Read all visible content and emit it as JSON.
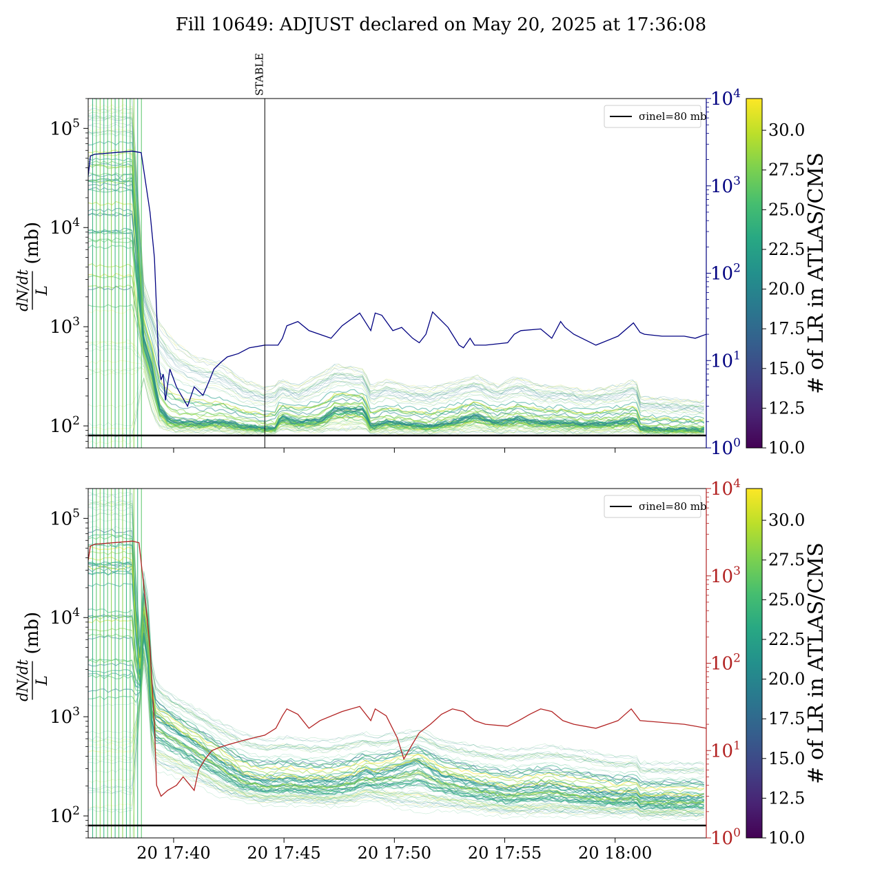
{
  "title": "Fill 10649: ADJUST declared on May 20, 2025 at 17:36:08",
  "colorbar": {
    "label": "# of LR in ATLAS/CMS",
    "ticks": [
      "10.0",
      "12.5",
      "15.0",
      "17.5",
      "20.0",
      "22.5",
      "25.0",
      "27.5",
      "30.0"
    ],
    "range": [
      10,
      32
    ]
  },
  "colors": {
    "upper_right_axis": "#000080",
    "lower_right_axis": "#b22222",
    "reference_line": "#000000"
  },
  "chart_data": [
    {
      "type": "line",
      "panel": "upper",
      "ylabel_numerator": "dN/dt",
      "ylabel_denominator": "L",
      "ylabel_unit": "(mb)",
      "yscale": "log",
      "ylim": [
        60,
        200000
      ],
      "yticks": [
        "10^5",
        "10^4",
        "10^3",
        "10^2"
      ],
      "y2scale": "log",
      "y2lim": [
        1,
        10000
      ],
      "y2ticks": [
        "10^0",
        "10^1",
        "10^2",
        "10^3",
        "10^4"
      ],
      "xlim_minutes": [
        0,
        28
      ],
      "legend": "σinel=80 mb",
      "legend_placement": "top-right",
      "reference_value_mb": 80,
      "annotation": {
        "text": "STABLE",
        "x_minutes": 8.0
      },
      "right_series": {
        "x_minutes": [
          0,
          0.1,
          0.3,
          2.0,
          2.4,
          2.8,
          3.0,
          3.2,
          3.3,
          3.4,
          3.5,
          3.7,
          4.0,
          4.5,
          4.8,
          5.2,
          5.5,
          5.7,
          6.0,
          6.3,
          6.8,
          7.3,
          8.0,
          8.6,
          8.8,
          9.0,
          9.5,
          10.0,
          11.0,
          11.5,
          12.3,
          12.8,
          13.0,
          13.3,
          13.8,
          14.2,
          14.7,
          15.0,
          15.3,
          15.6,
          16.3,
          16.8,
          17.0,
          17.3,
          17.5,
          18.0,
          19.0,
          19.3,
          19.6,
          20.5,
          21.0,
          21.4,
          21.6,
          22.0,
          23.0,
          24.0,
          24.7,
          25.0,
          25.2,
          26.0,
          27.0,
          27.5,
          28.0
        ],
        "values": [
          1300,
          2200,
          2300,
          2500,
          2400,
          500,
          150,
          9,
          6,
          7,
          3.5,
          8,
          5,
          3,
          5,
          4,
          6,
          8,
          9.5,
          11,
          12,
          14,
          15,
          15,
          18,
          25,
          28,
          22,
          18,
          25,
          35,
          22,
          35,
          33,
          22,
          24,
          18,
          16,
          20,
          36,
          24,
          15,
          14,
          18,
          15,
          15,
          16,
          20,
          22,
          23,
          18,
          28,
          24,
          20,
          15,
          19,
          27,
          21,
          20,
          19,
          19,
          18,
          20
        ]
      },
      "band": {
        "x_minutes": [
          0,
          2.0,
          2.5,
          2.9,
          3.2,
          3.6,
          4.0,
          5.0,
          6.0,
          7.0,
          8.0,
          8.5,
          8.7,
          9.5,
          10.5,
          11.2,
          12.5,
          12.8,
          13.5,
          14.5,
          15.5,
          16.5,
          17.5,
          18.5,
          19.5,
          20.5,
          21.5,
          22.5,
          24.0,
          24.8,
          25.0,
          26.5,
          28.0
        ],
        "median": [
          30000,
          30000,
          800,
          400,
          160,
          120,
          110,
          108,
          110,
          100,
          95,
          95,
          125,
          110,
          115,
          150,
          150,
          100,
          110,
          105,
          100,
          110,
          130,
          110,
          120,
          110,
          110,
          105,
          110,
          120,
          95,
          92,
          92
        ],
        "lower": [
          60,
          60,
          300,
          130,
          100,
          92,
          90,
          88,
          88,
          86,
          85,
          85,
          92,
          88,
          88,
          92,
          92,
          85,
          86,
          86,
          85,
          86,
          88,
          86,
          88,
          86,
          86,
          86,
          86,
          88,
          84,
          84,
          84
        ],
        "upper": [
          200000,
          200000,
          3000,
          1600,
          1200,
          900,
          700,
          500,
          450,
          300,
          250,
          260,
          300,
          260,
          350,
          420,
          380,
          260,
          300,
          260,
          250,
          280,
          330,
          260,
          320,
          260,
          260,
          230,
          260,
          300,
          200,
          190,
          180
        ]
      }
    },
    {
      "type": "line",
      "panel": "lower",
      "ylabel_numerator": "dN/dt",
      "ylabel_denominator": "L",
      "ylabel_unit": "(mb)",
      "yscale": "log",
      "ylim": [
        60,
        200000
      ],
      "yticks": [
        "10^5",
        "10^4",
        "10^3",
        "10^2"
      ],
      "y2scale": "log",
      "y2lim": [
        1,
        10000
      ],
      "y2ticks": [
        "10^0",
        "10^1",
        "10^2",
        "10^3",
        "10^4"
      ],
      "xlim_minutes": [
        0,
        28
      ],
      "xticks": [
        {
          "label": "20 17:40",
          "x_minutes": 3.87
        },
        {
          "label": "20 17:45",
          "x_minutes": 8.87
        },
        {
          "label": "20 17:50",
          "x_minutes": 13.87
        },
        {
          "label": "20 17:55",
          "x_minutes": 18.87
        },
        {
          "label": "20 18:00",
          "x_minutes": 23.87
        }
      ],
      "legend": "σinel=80 mb",
      "legend_placement": "top-right",
      "reference_value_mb": 80,
      "right_series": {
        "x_minutes": [
          0,
          0.1,
          0.3,
          2.0,
          2.3,
          2.6,
          2.8,
          3.0,
          3.1,
          3.3,
          3.6,
          4.0,
          4.3,
          4.8,
          5.0,
          5.3,
          5.6,
          6.0,
          6.5,
          7.0,
          7.5,
          8.0,
          8.5,
          8.8,
          9.0,
          9.5,
          10.0,
          10.5,
          11.5,
          12.3,
          12.8,
          13.0,
          13.5,
          14.0,
          14.3,
          14.7,
          15.0,
          15.5,
          16.0,
          16.5,
          17.0,
          17.5,
          18.0,
          19.0,
          19.5,
          20.0,
          20.5,
          21.0,
          21.5,
          22.0,
          23.0,
          24.0,
          24.6,
          25.0,
          26.0,
          27.0,
          27.5,
          28.0
        ],
        "values": [
          1500,
          2200,
          2300,
          2500,
          2400,
          500,
          150,
          20,
          4,
          3,
          3.5,
          4,
          5,
          3.5,
          6,
          8,
          10,
          11,
          12,
          13,
          14,
          15,
          18,
          25,
          30,
          26,
          18,
          22,
          28,
          32,
          22,
          30,
          25,
          14,
          8,
          12,
          16,
          20,
          26,
          30,
          28,
          22,
          20,
          19,
          22,
          26,
          30,
          28,
          22,
          20,
          18,
          22,
          30,
          22,
          21,
          20,
          19,
          18
        ]
      },
      "band": {
        "x_minutes": [
          0,
          2.0,
          2.3,
          2.6,
          2.8,
          3.0,
          3.3,
          4.0,
          5.0,
          6.0,
          7.0,
          8.0,
          9.0,
          10.0,
          11.0,
          12.0,
          12.5,
          13.0,
          14.0,
          15.0,
          16.0,
          17.0,
          18.0,
          19.0,
          20.0,
          21.0,
          22.0,
          23.0,
          24.0,
          24.8,
          25.0,
          26.5,
          28.0
        ],
        "median": [
          30000,
          30000,
          2000,
          20000,
          2000,
          1000,
          900,
          700,
          500,
          350,
          250,
          220,
          230,
          220,
          220,
          240,
          280,
          260,
          300,
          350,
          250,
          220,
          200,
          180,
          190,
          200,
          180,
          170,
          160,
          170,
          150,
          150,
          150
        ],
        "lower": [
          60,
          60,
          900,
          5000,
          500,
          300,
          280,
          250,
          200,
          160,
          140,
          130,
          130,
          130,
          125,
          130,
          140,
          140,
          120,
          110,
          115,
          110,
          105,
          100,
          100,
          100,
          100,
          100,
          100,
          100,
          95,
          95,
          95
        ],
        "upper": [
          200000,
          200000,
          5000,
          60000,
          5000,
          2500,
          2000,
          1600,
          1200,
          900,
          700,
          600,
          650,
          600,
          600,
          650,
          700,
          650,
          700,
          750,
          600,
          550,
          500,
          480,
          500,
          520,
          480,
          450,
          400,
          420,
          350,
          350,
          350
        ]
      }
    }
  ]
}
